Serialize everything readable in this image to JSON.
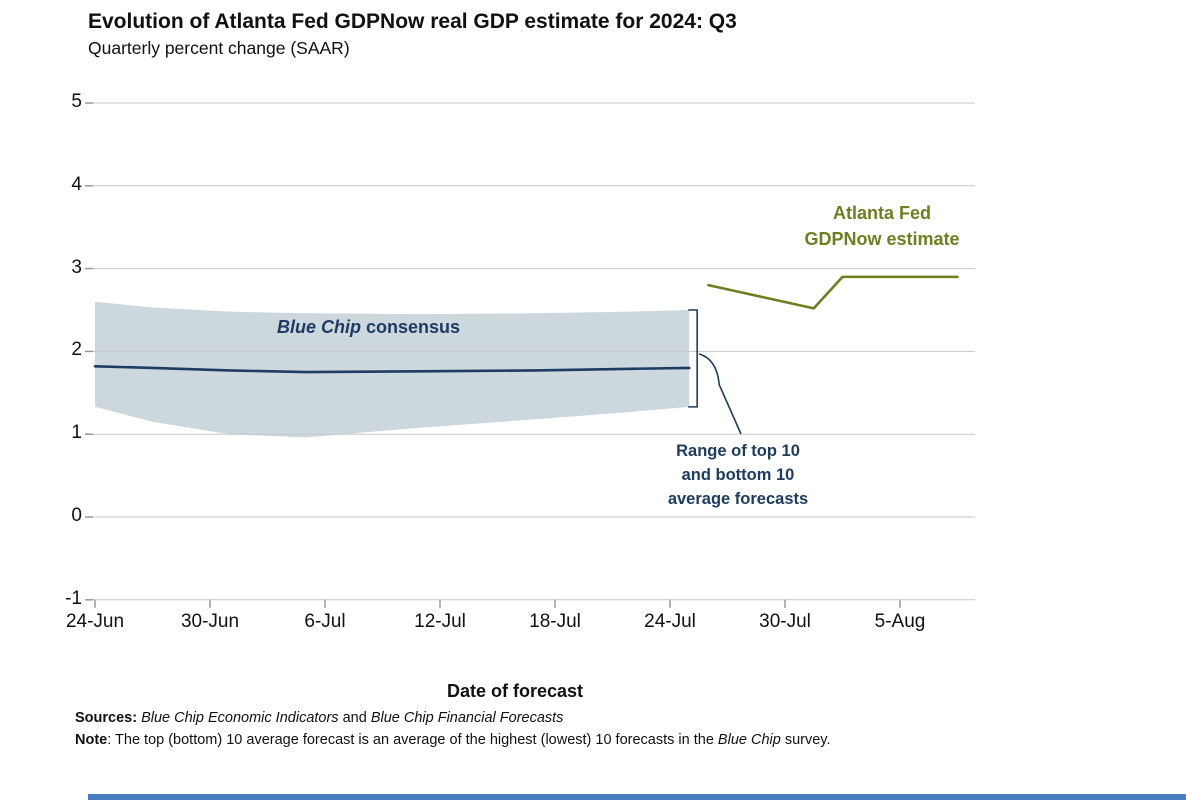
{
  "chart_data": {
    "type": "line",
    "title": "Evolution of Atlanta Fed GDPNow real GDP estimate for 2024: Q3",
    "subtitle": "Quarterly percent change (SAAR)",
    "xlabel": "Date of forecast",
    "ylabel": "",
    "ylim": [
      -1,
      5
    ],
    "grid": "horizontal",
    "legend": "none (direct line labels)",
    "x_unit": "days since 24-Jun-2024",
    "y_ticks": [
      5,
      4,
      3,
      2,
      1,
      0,
      -1
    ],
    "x_ticks": [
      {
        "label": "24-Jun",
        "day": 0
      },
      {
        "label": "30-Jun",
        "day": 6
      },
      {
        "label": "6-Jul",
        "day": 12
      },
      {
        "label": "12-Jul",
        "day": 18
      },
      {
        "label": "18-Jul",
        "day": 24
      },
      {
        "label": "24-Jul",
        "day": 30
      },
      {
        "label": "30-Jul",
        "day": 36
      },
      {
        "label": "5-Aug",
        "day": 42
      }
    ],
    "colors": {
      "navy": "#1e3c61",
      "olive": "#6f7e1f",
      "band": "#ccd7de",
      "gridline": "#c7c7c7",
      "tick": "#999999"
    },
    "series": [
      {
        "name": "Blue Chip consensus",
        "role": "consensus",
        "color": "#1e3c61",
        "points": [
          [
            0,
            1.82
          ],
          [
            3,
            1.8
          ],
          [
            7,
            1.77
          ],
          [
            11,
            1.75
          ],
          [
            17,
            1.76
          ],
          [
            23,
            1.77
          ],
          [
            28,
            1.79
          ],
          [
            31,
            1.8
          ]
        ]
      },
      {
        "name": "Top 10 average forecast",
        "role": "band-top",
        "color": "#ccd7de",
        "points": [
          [
            0,
            2.6
          ],
          [
            3,
            2.53
          ],
          [
            7,
            2.48
          ],
          [
            11,
            2.46
          ],
          [
            17,
            2.45
          ],
          [
            23,
            2.46
          ],
          [
            28,
            2.48
          ],
          [
            31,
            2.5
          ]
        ]
      },
      {
        "name": "Bottom 10 average forecast",
        "role": "band-bottom",
        "color": "#ccd7de",
        "points": [
          [
            0,
            1.33
          ],
          [
            3,
            1.15
          ],
          [
            7,
            1.0
          ],
          [
            11,
            0.96
          ],
          [
            17,
            1.08
          ],
          [
            23,
            1.18
          ],
          [
            28,
            1.27
          ],
          [
            31,
            1.33
          ]
        ]
      },
      {
        "name": "Atlanta Fed GDPNow estimate",
        "role": "gdpnow",
        "color": "#6f7e1f",
        "points": [
          [
            32,
            2.8
          ],
          [
            37.5,
            2.52
          ],
          [
            39,
            2.9
          ],
          [
            45,
            2.9
          ]
        ]
      }
    ]
  },
  "annotations": {
    "blue_chip_italic": "Blue Chip",
    "blue_chip_rest": " consensus",
    "gdpnow_line1": "Atlanta Fed",
    "gdpnow_line2": "GDPNow estimate",
    "range_line1": "Range of top 10",
    "range_line2": "and bottom 10",
    "range_line3": "average forecasts"
  },
  "footer": {
    "sources_label": "Sources: ",
    "sources_pub1": "Blue Chip Economic Indicators",
    "sources_joiner": " and ",
    "sources_pub2": "Blue Chip Financial Forecasts",
    "note_label": "Note",
    "note_body1": ": The top (bottom) 10 average forecast is an average of the highest (lowest) 10 forecasts in the ",
    "note_pub": "Blue Chip",
    "note_body2": " survey."
  }
}
